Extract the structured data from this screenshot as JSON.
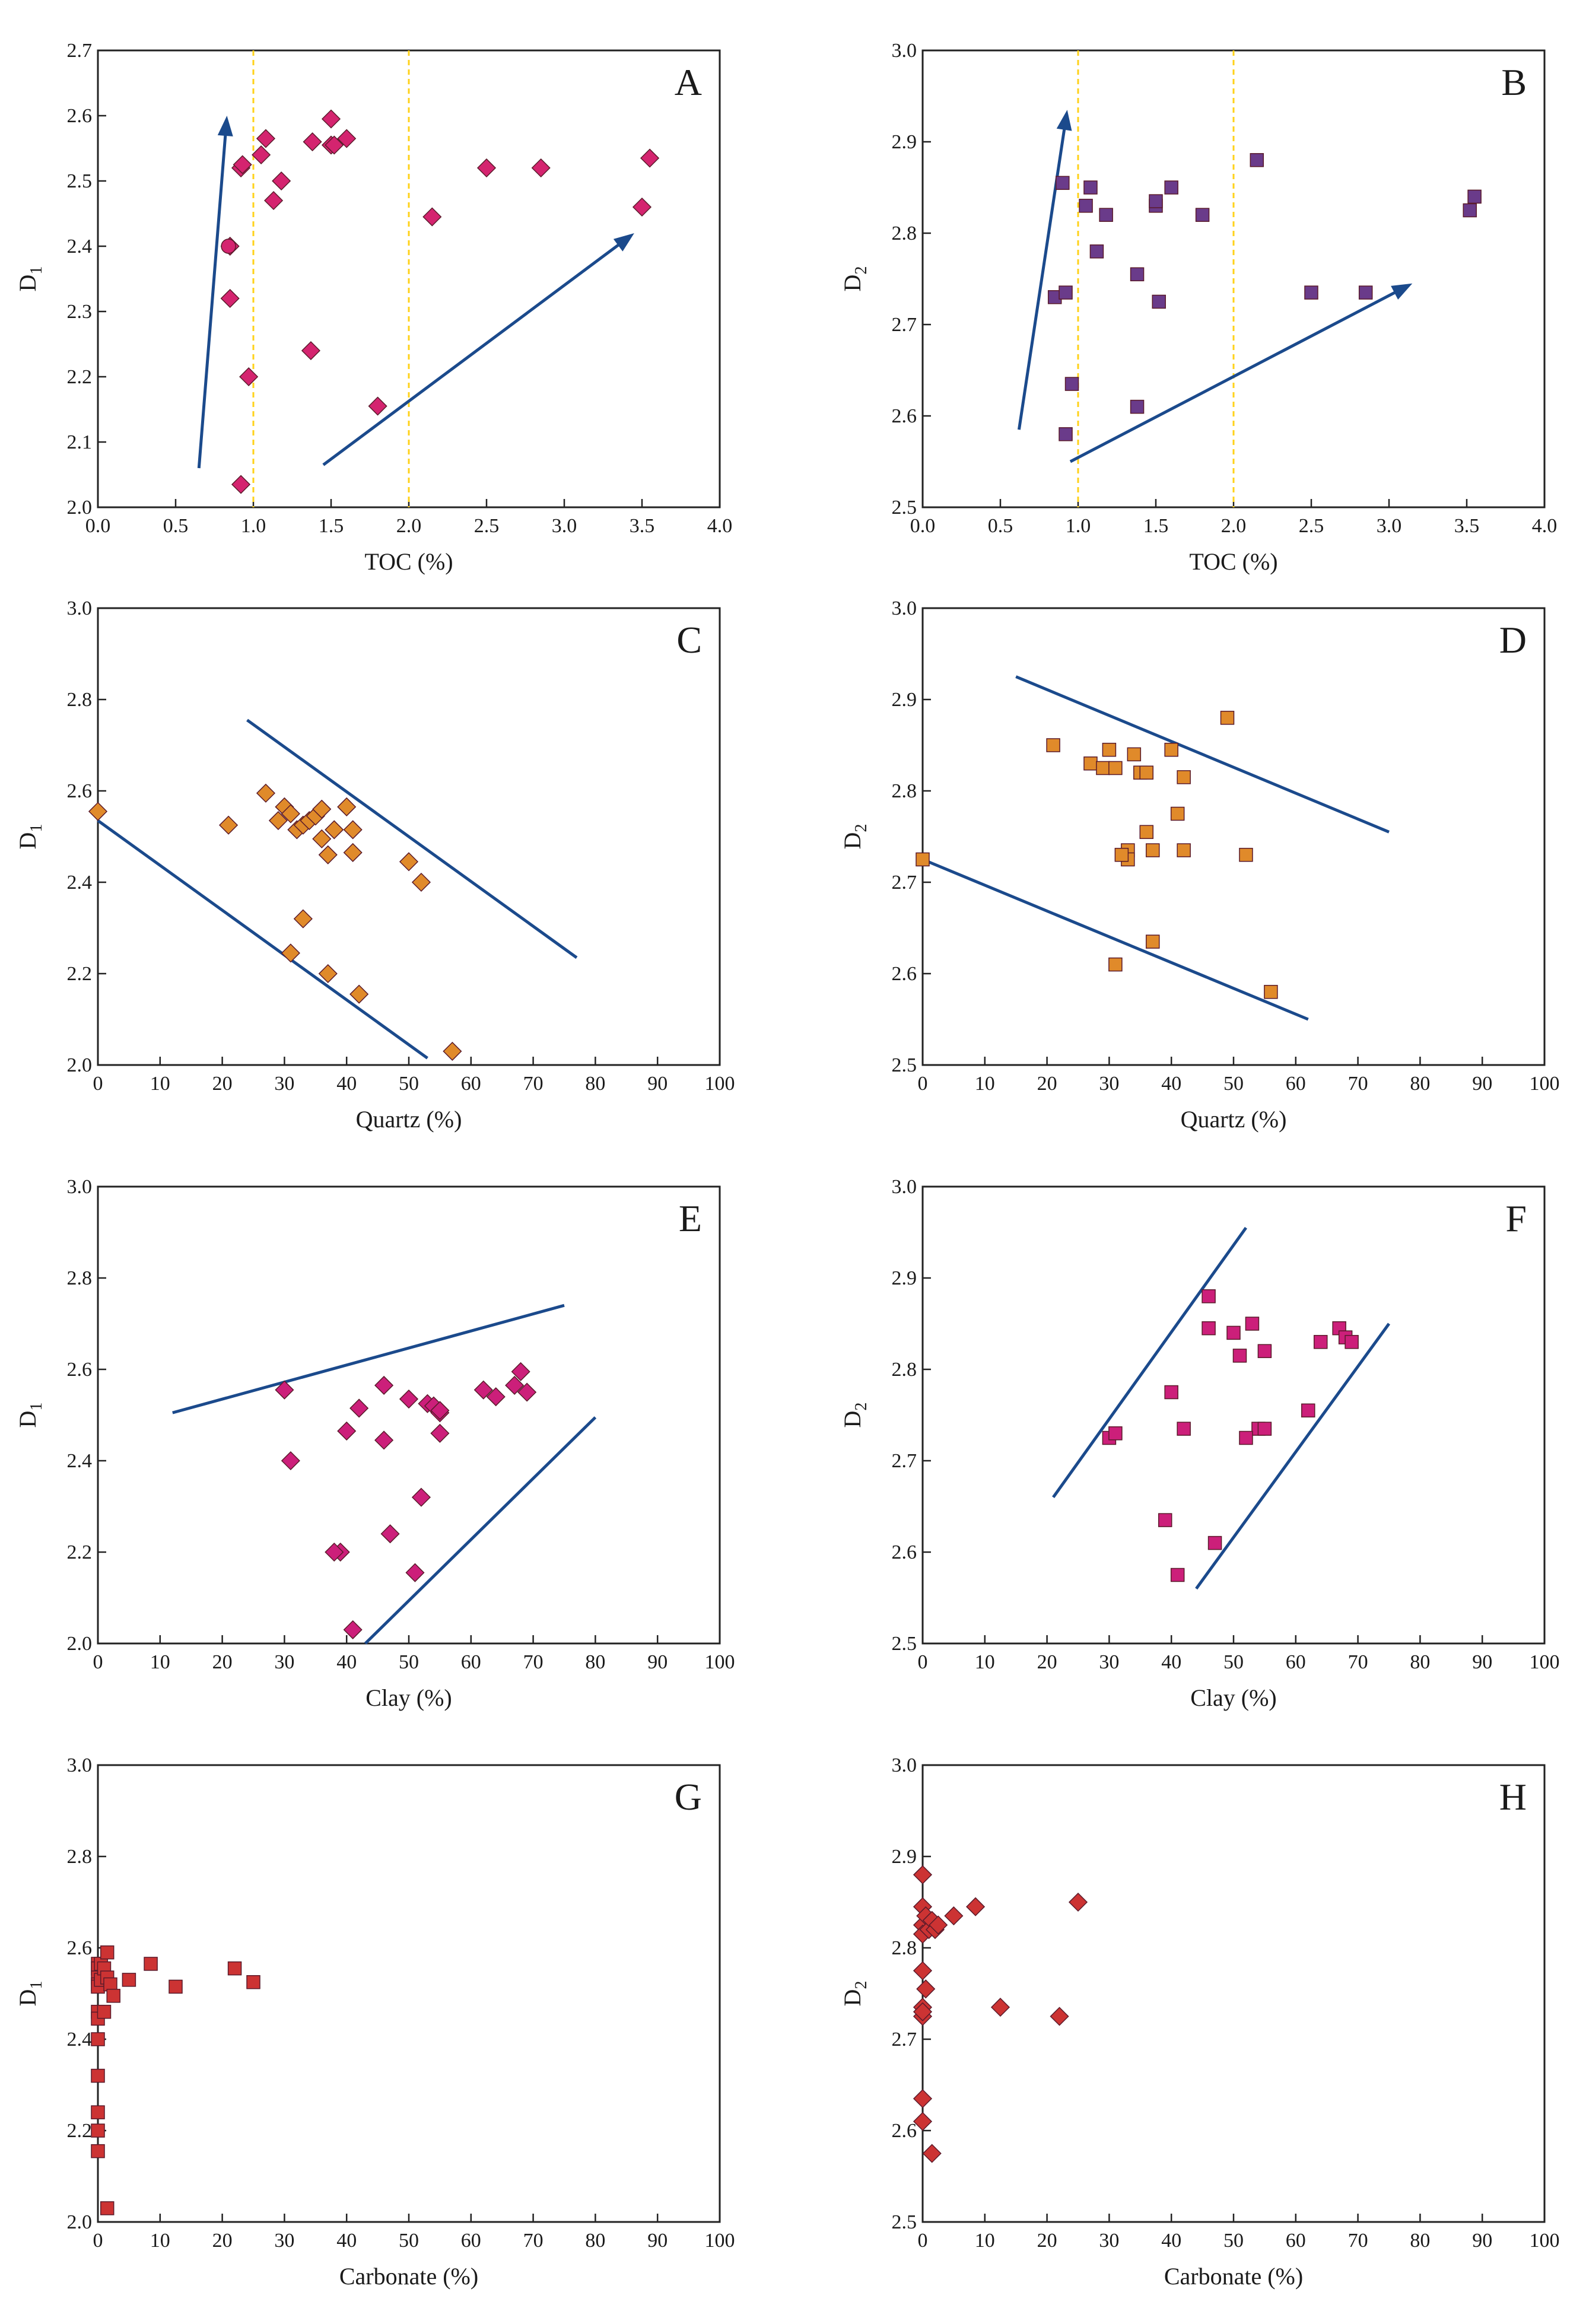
{
  "colors": {
    "magenta": "#d4246f",
    "purple": "#6a3b8a",
    "orange": "#e08a2a",
    "pink": "#cc1f7a",
    "red": "#cc3333",
    "trend": "#1b4a8c",
    "refline": "#ffd21a"
  },
  "chart_data": [
    {
      "id": "A",
      "type": "scatter",
      "panel_label": "A",
      "xlabel": "TOC (%)",
      "ylabel": "D",
      "ylabel_sub": "1",
      "xlim": [
        0,
        4
      ],
      "ylim": [
        2.0,
        2.7
      ],
      "xticks": [
        "0.0",
        "0.5",
        "1.0",
        "1.5",
        "2.0",
        "2.5",
        "3.0",
        "3.5",
        "4.0"
      ],
      "yticks": [
        "2.0",
        "2.1",
        "2.2",
        "2.3",
        "2.4",
        "2.5",
        "2.6",
        "2.7"
      ],
      "series": [
        {
          "marker": "diamond",
          "color": "#d4246f",
          "x": [
            0.92,
            0.93,
            1.05,
            1.08,
            1.13,
            1.18,
            1.38,
            1.5,
            1.5,
            1.52,
            1.6,
            0.85,
            0.85,
            0.97,
            1.37,
            1.8,
            2.15,
            2.5,
            2.85,
            3.5,
            3.55,
            0.92
          ],
          "y": [
            2.52,
            2.525,
            2.54,
            2.565,
            2.47,
            2.5,
            2.56,
            2.555,
            2.595,
            2.555,
            2.565,
            2.32,
            2.4,
            2.2,
            2.24,
            2.155,
            2.445,
            2.52,
            2.52,
            2.46,
            2.535,
            2.035
          ]
        },
        {
          "marker": "circle",
          "color": "#d4246f",
          "x": [
            0.84
          ],
          "y": [
            2.4
          ]
        }
      ],
      "reflines_x": [
        1.0,
        2.0
      ],
      "trendlines": [
        {
          "x": [
            0.65,
            0.83
          ],
          "y": [
            2.06,
            2.6
          ],
          "arrow": true
        },
        {
          "x": [
            1.45,
            3.45
          ],
          "y": [
            2.065,
            2.42
          ],
          "arrow": true
        }
      ]
    },
    {
      "id": "B",
      "type": "scatter",
      "panel_label": "B",
      "xlabel": "TOC (%)",
      "ylabel": "D",
      "ylabel_sub": "2",
      "xlim": [
        0,
        4
      ],
      "ylim": [
        2.5,
        3.0
      ],
      "xticks": [
        "0.0",
        "0.5",
        "1.0",
        "1.5",
        "2.0",
        "2.5",
        "3.0",
        "3.5",
        "4.0"
      ],
      "yticks": [
        "2.5",
        "2.6",
        "2.7",
        "2.8",
        "2.9",
        "3.0"
      ],
      "series": [
        {
          "marker": "square",
          "color": "#6a3b8a",
          "x": [
            0.85,
            0.9,
            0.92,
            0.92,
            0.96,
            1.05,
            1.08,
            1.12,
            1.18,
            1.38,
            1.38,
            1.5,
            1.5,
            1.52,
            1.6,
            1.8,
            2.15,
            2.5,
            2.85,
            3.52,
            3.55
          ],
          "y": [
            2.73,
            2.855,
            2.58,
            2.735,
            2.635,
            2.83,
            2.85,
            2.78,
            2.82,
            2.61,
            2.755,
            2.83,
            2.835,
            2.725,
            2.85,
            2.82,
            2.88,
            2.735,
            2.735,
            2.825,
            2.84
          ]
        }
      ],
      "reflines_x": [
        1.0,
        2.0
      ],
      "trendlines": [
        {
          "x": [
            0.62,
            0.93
          ],
          "y": [
            2.585,
            2.935
          ],
          "arrow": true
        },
        {
          "x": [
            0.95,
            3.15
          ],
          "y": [
            2.55,
            2.745
          ],
          "arrow": true
        }
      ]
    },
    {
      "id": "C",
      "type": "scatter",
      "panel_label": "C",
      "xlabel": "Quartz (%)",
      "ylabel": "D",
      "ylabel_sub": "1",
      "xlim": [
        0,
        100
      ],
      "ylim": [
        2.0,
        3.0
      ],
      "xticks": [
        "0",
        "10",
        "20",
        "30",
        "40",
        "50",
        "60",
        "70",
        "80",
        "90",
        "100"
      ],
      "yticks": [
        "2.0",
        "2.2",
        "2.4",
        "2.6",
        "2.8",
        "3.0"
      ],
      "series": [
        {
          "marker": "diamond",
          "color": "#e08a2a",
          "x": [
            0,
            21,
            27,
            29,
            30,
            31,
            32,
            33,
            34,
            35,
            36,
            36,
            37,
            38,
            40,
            41,
            41,
            50,
            52,
            33,
            31,
            37,
            42,
            57
          ],
          "y": [
            2.555,
            2.525,
            2.595,
            2.535,
            2.565,
            2.55,
            2.515,
            2.525,
            2.535,
            2.545,
            2.56,
            2.495,
            2.46,
            2.515,
            2.565,
            2.465,
            2.515,
            2.445,
            2.4,
            2.32,
            2.245,
            2.2,
            2.155,
            2.03
          ]
        }
      ],
      "trendlines": [
        {
          "x": [
            24,
            77
          ],
          "y": [
            2.755,
            2.235
          ],
          "arrow": false
        },
        {
          "x": [
            0,
            53
          ],
          "y": [
            2.535,
            2.015
          ],
          "arrow": false
        }
      ]
    },
    {
      "id": "D",
      "type": "scatter",
      "panel_label": "D",
      "xlabel": "Quartz (%)",
      "ylabel": "D",
      "ylabel_sub": "2",
      "xlim": [
        0,
        100
      ],
      "ylim": [
        2.5,
        3.0
      ],
      "xticks": [
        "0",
        "10",
        "20",
        "30",
        "40",
        "50",
        "60",
        "70",
        "80",
        "90",
        "100"
      ],
      "yticks": [
        "2.5",
        "2.6",
        "2.7",
        "2.8",
        "2.9",
        "3.0"
      ],
      "series": [
        {
          "marker": "square",
          "color": "#e08a2a",
          "x": [
            0,
            21,
            27,
            29,
            30,
            31,
            33,
            33,
            34,
            35,
            36,
            37,
            40,
            41,
            42,
            42,
            49,
            52,
            37,
            31,
            56,
            36,
            32
          ],
          "y": [
            2.725,
            2.85,
            2.83,
            2.825,
            2.845,
            2.825,
            2.735,
            2.725,
            2.84,
            2.82,
            2.82,
            2.735,
            2.845,
            2.775,
            2.815,
            2.735,
            2.88,
            2.73,
            2.635,
            2.61,
            2.58,
            2.755,
            2.73
          ]
        }
      ],
      "trendlines": [
        {
          "x": [
            15,
            75
          ],
          "y": [
            2.925,
            2.755
          ],
          "arrow": false
        },
        {
          "x": [
            0,
            62
          ],
          "y": [
            2.725,
            2.55
          ],
          "arrow": false
        }
      ]
    },
    {
      "id": "E",
      "type": "scatter",
      "panel_label": "E",
      "xlabel": "Clay (%)",
      "ylabel": "D",
      "ylabel_sub": "1",
      "xlim": [
        0,
        100
      ],
      "ylim": [
        2.0,
        3.0
      ],
      "xticks": [
        "0",
        "10",
        "20",
        "30",
        "40",
        "50",
        "60",
        "70",
        "80",
        "90",
        "100"
      ],
      "yticks": [
        "2.0",
        "2.2",
        "2.4",
        "2.6",
        "2.8",
        "3.0"
      ],
      "series": [
        {
          "marker": "diamond",
          "color": "#cc1f7a",
          "x": [
            30,
            31,
            39,
            40,
            42,
            46,
            46,
            50,
            53,
            54,
            55,
            55,
            55,
            62,
            64,
            67,
            68,
            69,
            38,
            47,
            52,
            51,
            41
          ],
          "y": [
            2.555,
            2.4,
            2.2,
            2.465,
            2.515,
            2.565,
            2.445,
            2.535,
            2.525,
            2.52,
            2.505,
            2.46,
            2.51,
            2.555,
            2.54,
            2.565,
            2.595,
            2.55,
            2.2,
            2.24,
            2.32,
            2.155,
            2.03
          ]
        }
      ],
      "trendlines": [
        {
          "x": [
            12,
            75
          ],
          "y": [
            2.505,
            2.74
          ],
          "arrow": false
        },
        {
          "x": [
            43,
            80
          ],
          "y": [
            2.0,
            2.495
          ],
          "arrow": false
        }
      ]
    },
    {
      "id": "F",
      "type": "scatter",
      "panel_label": "F",
      "xlabel": "Clay (%)",
      "ylabel": "D",
      "ylabel_sub": "2",
      "xlim": [
        0,
        100
      ],
      "ylim": [
        2.5,
        3.0
      ],
      "xticks": [
        "0",
        "10",
        "20",
        "30",
        "40",
        "50",
        "60",
        "70",
        "80",
        "90",
        "100"
      ],
      "yticks": [
        "2.5",
        "2.6",
        "2.7",
        "2.8",
        "2.9",
        "3.0"
      ],
      "series": [
        {
          "marker": "square",
          "color": "#cc1f7a",
          "x": [
            30,
            31,
            40,
            41,
            42,
            46,
            46,
            50,
            51,
            53,
            54,
            55,
            55,
            52,
            62,
            64,
            67,
            68,
            69,
            39,
            47
          ],
          "y": [
            2.725,
            2.73,
            2.775,
            2.575,
            2.735,
            2.88,
            2.845,
            2.84,
            2.815,
            2.85,
            2.735,
            2.82,
            2.735,
            2.725,
            2.755,
            2.83,
            2.845,
            2.835,
            2.83,
            2.635,
            2.61
          ]
        }
      ],
      "trendlines": [
        {
          "x": [
            21,
            52
          ],
          "y": [
            2.66,
            2.955
          ],
          "arrow": false
        },
        {
          "x": [
            44,
            75
          ],
          "y": [
            2.56,
            2.85
          ],
          "arrow": false
        }
      ]
    },
    {
      "id": "G",
      "type": "scatter",
      "panel_label": "G",
      "xlabel": "Carbonate (%)",
      "ylabel": "D",
      "ylabel_sub": "1",
      "xlim": [
        0,
        100
      ],
      "ylim": [
        2.0,
        3.0
      ],
      "xticks": [
        "0",
        "10",
        "20",
        "30",
        "40",
        "50",
        "60",
        "70",
        "80",
        "90",
        "100"
      ],
      "yticks": [
        "2.0",
        "2.2",
        "2.4",
        "2.6",
        "2.8",
        "3.0"
      ],
      "series": [
        {
          "marker": "square",
          "color": "#cc3333",
          "x": [
            0,
            0,
            0,
            0,
            0,
            0,
            0,
            0,
            0,
            0,
            0.5,
            0.5,
            1,
            1,
            1.5,
            1.5,
            2,
            2.5,
            5,
            8.5,
            12.5,
            22,
            25,
            0,
            0,
            1.5
          ],
          "y": [
            2.565,
            2.555,
            2.535,
            2.52,
            2.515,
            2.46,
            2.445,
            2.4,
            2.32,
            2.24,
            2.565,
            2.53,
            2.555,
            2.46,
            2.59,
            2.535,
            2.52,
            2.495,
            2.53,
            2.565,
            2.515,
            2.555,
            2.525,
            2.2,
            2.155,
            2.03
          ]
        }
      ]
    },
    {
      "id": "H",
      "type": "scatter",
      "panel_label": "H",
      "xlabel": "Carbonate (%)",
      "ylabel": "D",
      "ylabel_sub": "2",
      "xlim": [
        0,
        100
      ],
      "ylim": [
        2.5,
        3.0
      ],
      "xticks": [
        "0",
        "10",
        "20",
        "30",
        "40",
        "50",
        "60",
        "70",
        "80",
        "90",
        "100"
      ],
      "yticks": [
        "2.5",
        "2.6",
        "2.7",
        "2.8",
        "2.9",
        "3.0"
      ],
      "series": [
        {
          "marker": "diamond",
          "color": "#cc3333",
          "x": [
            0,
            0,
            0,
            0,
            0,
            0,
            0,
            0,
            0,
            0,
            0.5,
            0.5,
            1,
            1.5,
            2,
            2.5,
            5,
            8.5,
            12.5,
            22,
            25,
            1.5
          ],
          "y": [
            2.88,
            2.845,
            2.825,
            2.815,
            2.775,
            2.735,
            2.725,
            2.635,
            2.61,
            2.73,
            2.835,
            2.755,
            2.82,
            2.83,
            2.82,
            2.825,
            2.835,
            2.845,
            2.735,
            2.725,
            2.85,
            2.575
          ]
        }
      ]
    }
  ]
}
